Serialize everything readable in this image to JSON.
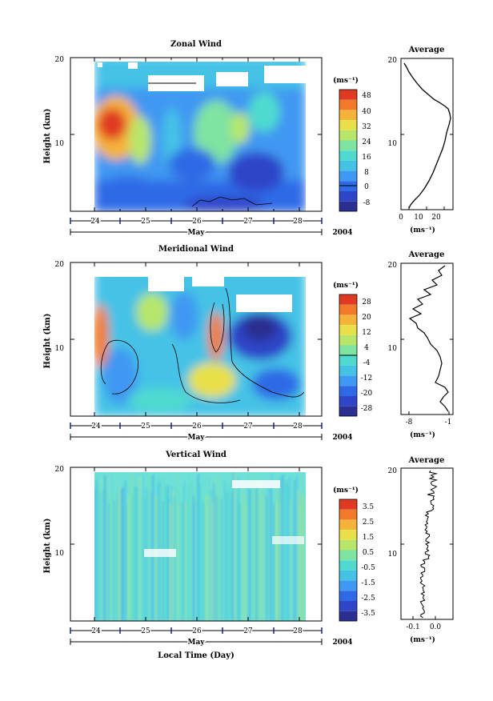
{
  "figure": {
    "year": "2004",
    "xlabel": "Local Time (Day)",
    "month_label": "May",
    "day_ticks": [
      "24",
      "25",
      "26",
      "27",
      "28"
    ]
  },
  "colors": {
    "scale": [
      "#2b2f8f",
      "#2f45c8",
      "#2f6ae6",
      "#3f98f2",
      "#44c2e6",
      "#4fdad0",
      "#7fe3a2",
      "#b7e66a",
      "#e8e04a",
      "#f5b33a",
      "#f17a2a",
      "#e03a24"
    ],
    "pink": "#f2c6e6",
    "marker": "#1a237e"
  },
  "panels": [
    {
      "title": "Zonal Wind",
      "ylabel": "Height (km)",
      "yticks": [
        "20",
        "10"
      ],
      "unit": "(ms⁻¹)",
      "cbar_labels": [
        "48",
        "40",
        "32",
        "24",
        "16",
        "8",
        "0",
        "-8"
      ],
      "avg_title": "Average",
      "avg_unit": "(ms⁻¹)",
      "avg_xticks": [
        "0",
        "10",
        "20"
      ],
      "avg_yticks": [
        "20",
        "10"
      ]
    },
    {
      "title": "Meridional Wind",
      "ylabel": "Height (km)",
      "yticks": [
        "20",
        "10"
      ],
      "unit": "(ms⁻¹)",
      "cbar_labels": [
        "28",
        "20",
        "12",
        "4",
        "-4",
        "-12",
        "-20",
        "-28"
      ],
      "avg_title": "Average",
      "avg_unit": "(ms⁻¹)",
      "avg_xticks": [
        "-8",
        "-1"
      ],
      "avg_yticks": [
        "20",
        "10"
      ]
    },
    {
      "title": "Vertical Wind",
      "ylabel": "Height (km)",
      "yticks": [
        "20",
        "10"
      ],
      "unit": "(ms⁻¹)",
      "cbar_labels": [
        "3.5",
        "2.5",
        "1.5",
        "0.5",
        "-0.5",
        "-1.5",
        "-2.5",
        "-3.5"
      ],
      "avg_title": "Average",
      "avg_unit": "(ms⁻¹)",
      "avg_xticks": [
        "-0.1",
        "0.0"
      ],
      "avg_yticks": [
        "20",
        "10"
      ]
    }
  ],
  "chart_data": [
    {
      "type": "heatmap",
      "title": "Zonal Wind",
      "ylabel": "Height (km)",
      "xlabel": "May 2004",
      "ylim": [
        0,
        20
      ],
      "xlim": [
        "May 24",
        "May 28"
      ],
      "colorbar_levels": [
        -8,
        0,
        8,
        16,
        24,
        32,
        40,
        48
      ],
      "average_profile": {
        "xlim": [
          0,
          24
        ],
        "height_km": [
          2,
          4,
          6,
          8,
          10,
          12,
          14,
          16,
          18,
          19.5
        ],
        "value": [
          3,
          6,
          10,
          15,
          19,
          22,
          23,
          20,
          10,
          2
        ]
      }
    },
    {
      "type": "heatmap",
      "title": "Meridional Wind",
      "ylabel": "Height (km)",
      "xlabel": "May 2004",
      "ylim": [
        0,
        20
      ],
      "xlim": [
        "May 24",
        "May 28"
      ],
      "colorbar_levels": [
        -28,
        -20,
        -12,
        -4,
        4,
        12,
        20,
        28
      ],
      "average_profile": {
        "xlim": [
          -8,
          -1
        ],
        "height_km": [
          2,
          4,
          6,
          8,
          10,
          12,
          14,
          16,
          18,
          19.5
        ],
        "value": [
          -2,
          -1.5,
          -3,
          -4,
          -5,
          -6,
          -5,
          -6,
          -3,
          -2
        ]
      }
    },
    {
      "type": "heatmap",
      "title": "Vertical Wind",
      "ylabel": "Height (km)",
      "xlabel": "Local Time (Day)",
      "ylim": [
        0,
        20
      ],
      "xlim": [
        "May 24",
        "May 28"
      ],
      "colorbar_levels": [
        -3.5,
        -2.5,
        -1.5,
        -0.5,
        0.5,
        1.5,
        2.5,
        3.5
      ],
      "average_profile": {
        "xlim": [
          -0.15,
          0.05
        ],
        "height_km": [
          2,
          4,
          6,
          8,
          10,
          12,
          14,
          16,
          18,
          19.5
        ],
        "value": [
          -0.01,
          -0.02,
          -0.03,
          -0.02,
          -0.05,
          -0.03,
          0.0,
          -0.02,
          0.02,
          -0.04
        ]
      }
    }
  ]
}
